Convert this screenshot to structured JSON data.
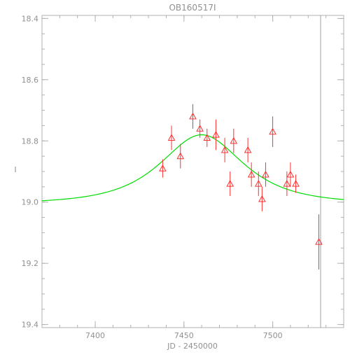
{
  "chart_data": {
    "type": "scatter",
    "title": "OB160517I",
    "xlabel": "JD - 2450000",
    "ylabel": "I",
    "xlim": [
      7370,
      7540
    ],
    "ylim": [
      19.41,
      18.39
    ],
    "y_inverted": true,
    "grid": false,
    "xticks": [
      {
        "value": 7400,
        "label": "7400"
      },
      {
        "value": 7450,
        "label": "7450"
      },
      {
        "value": 7500,
        "label": "7500"
      }
    ],
    "yticks": [
      {
        "value": 18.4,
        "label": "18.4"
      },
      {
        "value": 18.6,
        "label": "18.6"
      },
      {
        "value": 18.8,
        "label": "18.8"
      },
      {
        "value": 19.0,
        "label": "19.0"
      },
      {
        "value": 19.2,
        "label": "19.2"
      },
      {
        "value": 19.4,
        "label": "19.4"
      }
    ],
    "x_minor_step": 10,
    "y_minor_step": 0.05,
    "model": {
      "color": "#00dd00",
      "baseline": 19.005,
      "peak_mag": 18.78,
      "t0": 7460,
      "tE": 31,
      "u0": 0.95
    },
    "vline": {
      "x": 7527,
      "color": "#a0a0a0"
    },
    "series": [
      {
        "marker": "triangle",
        "color": "#ff3030",
        "points": [
          {
            "x": 7438,
            "y": 18.89,
            "err": 0.03
          },
          {
            "x": 7443,
            "y": 18.79,
            "err": 0.04
          },
          {
            "x": 7448,
            "y": 18.85,
            "err": 0.04
          },
          {
            "x": 7455,
            "y": 18.72,
            "err": 0.04
          },
          {
            "x": 7459,
            "y": 18.76,
            "err": 0.03
          },
          {
            "x": 7463,
            "y": 18.79,
            "err": 0.03
          },
          {
            "x": 7468,
            "y": 18.78,
            "err": 0.05
          },
          {
            "x": 7473,
            "y": 18.83,
            "err": 0.04
          },
          {
            "x": 7476,
            "y": 18.94,
            "err": 0.04
          },
          {
            "x": 7478,
            "y": 18.8,
            "err": 0.04
          },
          {
            "x": 7486,
            "y": 18.83,
            "err": 0.04
          },
          {
            "x": 7488,
            "y": 18.91,
            "err": 0.04
          },
          {
            "x": 7492,
            "y": 18.94,
            "err": 0.04
          },
          {
            "x": 7494,
            "y": 18.99,
            "err": 0.04
          },
          {
            "x": 7496,
            "y": 18.91,
            "err": 0.04
          },
          {
            "x": 7500,
            "y": 18.77,
            "err": 0.05
          },
          {
            "x": 7508,
            "y": 18.94,
            "err": 0.04
          },
          {
            "x": 7510,
            "y": 18.91,
            "err": 0.04
          },
          {
            "x": 7513,
            "y": 18.94,
            "err": 0.03
          },
          {
            "x": 7526,
            "y": 19.13,
            "err": 0.09
          }
        ]
      }
    ]
  }
}
